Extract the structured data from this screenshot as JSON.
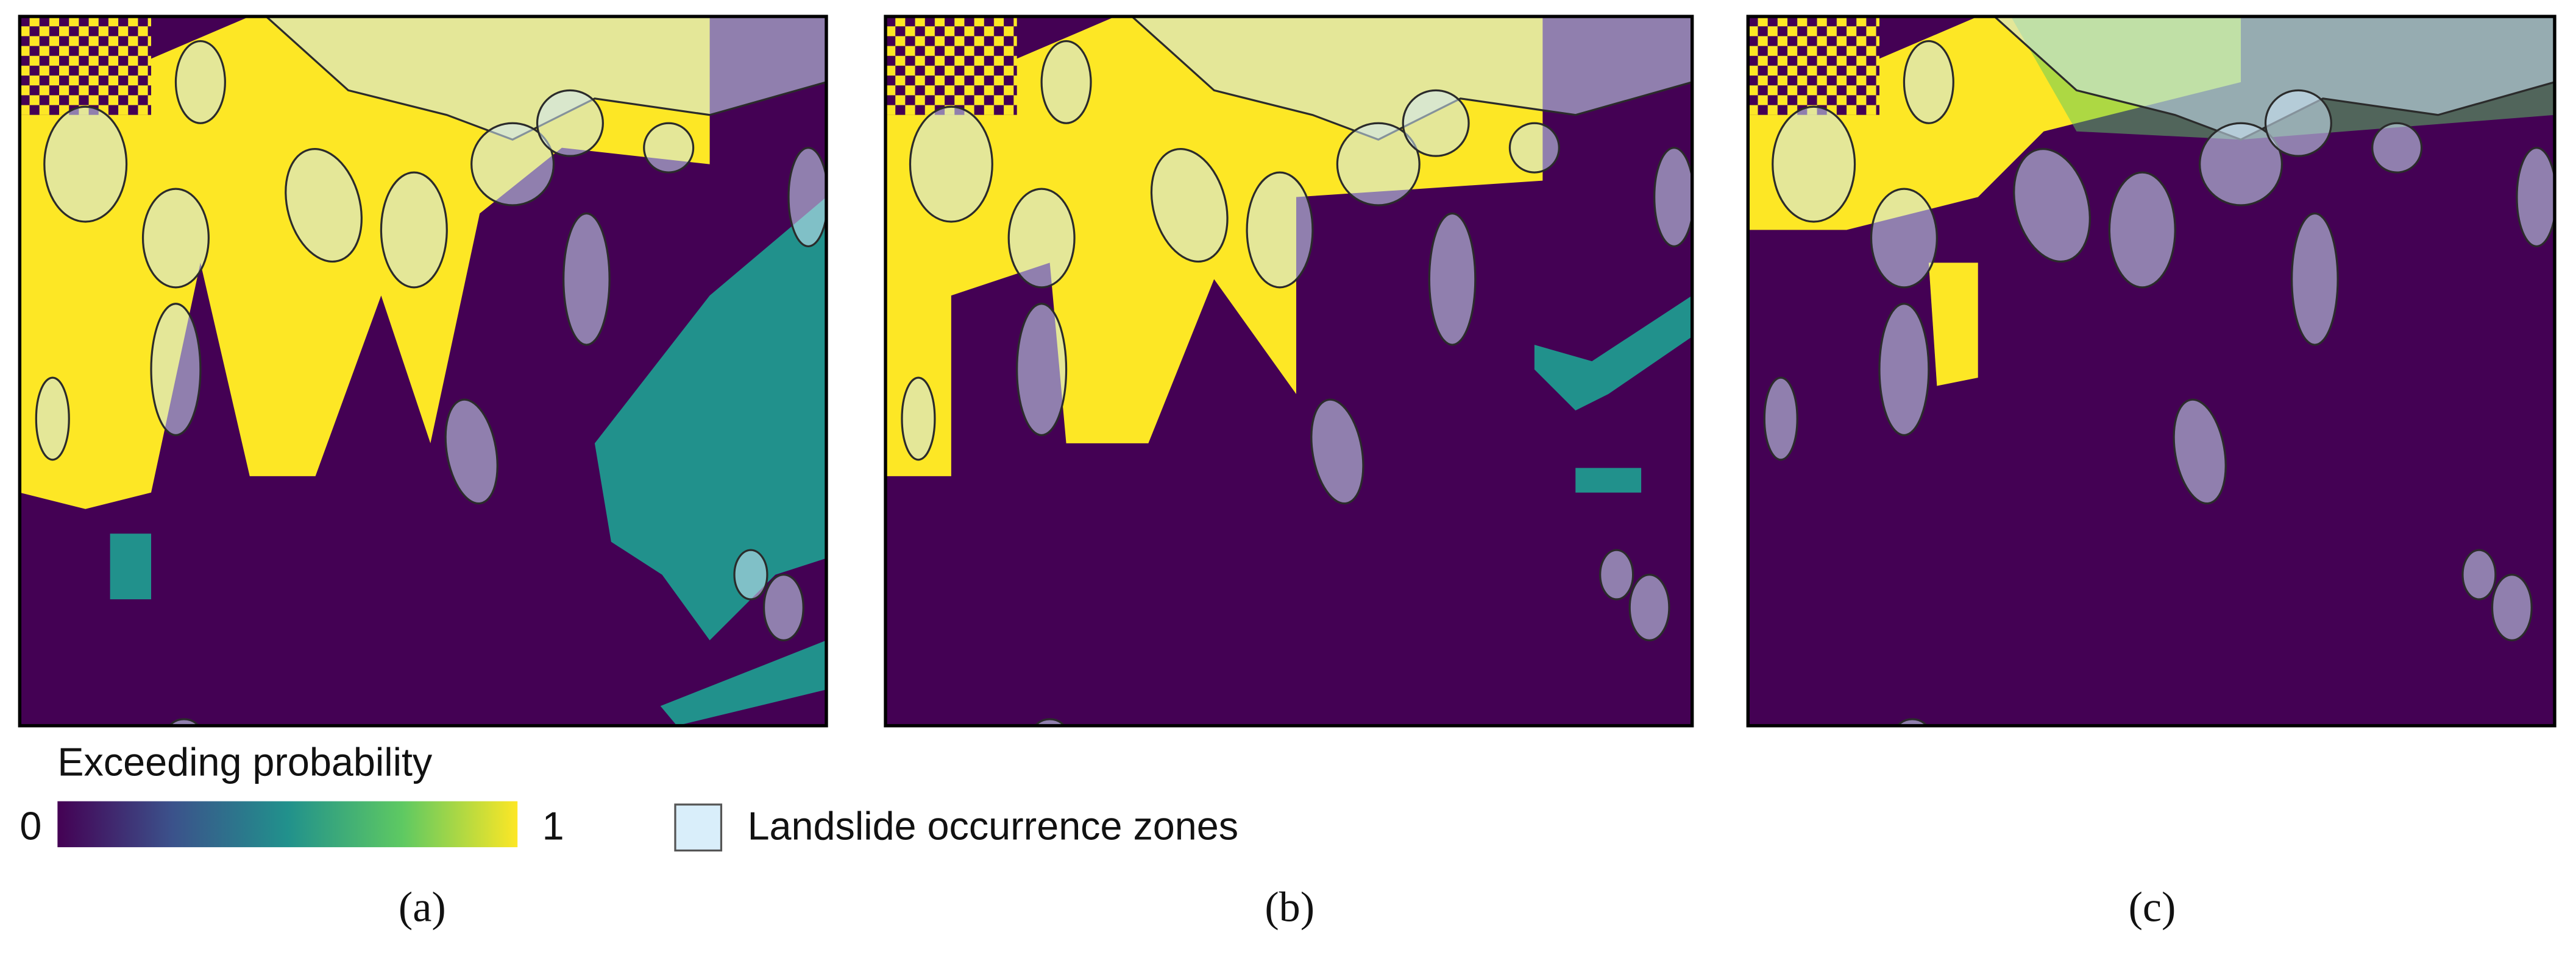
{
  "legend": {
    "title": "Exceeding probability",
    "colorbar": {
      "ticks": [
        0,
        1
      ]
    },
    "zones_label": "Landslide occurrence zones"
  },
  "panels": [
    {
      "label": "(a)"
    },
    {
      "label": "(b)"
    },
    {
      "label": "(c)"
    }
  ]
}
